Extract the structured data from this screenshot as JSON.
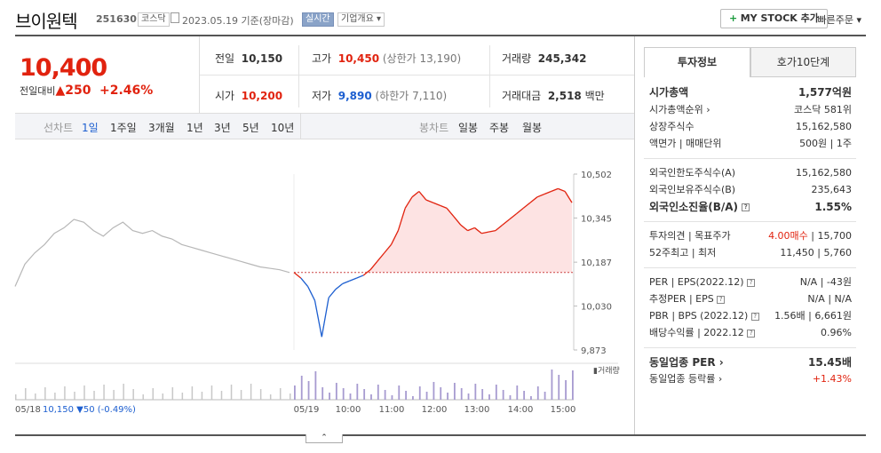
{
  "header": {
    "name": "브이원텍",
    "code": "251630",
    "market": "코스닥",
    "date": "2023.05.19",
    "basis": "기준(장마감)",
    "live": "실시간",
    "company_info": "기업개요",
    "mystock": "MY STOCK 추가",
    "quick_order": "빠른주문"
  },
  "price": {
    "current": "10,400",
    "prev_label": "전일대비",
    "change": "250",
    "change_pct": "+2.46%"
  },
  "stats": {
    "prev_close_label": "전일",
    "prev_close": "10,150",
    "high_label": "고가",
    "high": "10,450",
    "upper_limit": "(상한가 13,190)",
    "volume_label": "거래량",
    "volume": "245,342",
    "open_label": "시가",
    "open": "10,200",
    "low_label": "저가",
    "low": "9,890",
    "lower_limit": "(하한가 7,110)",
    "amount_label": "거래대금",
    "amount": "2,518",
    "amount_unit": "백만"
  },
  "chart_tabs": {
    "line_label": "선차트",
    "line_items": [
      "1일",
      "1주일",
      "3개월",
      "1년",
      "3년",
      "5년",
      "10년"
    ],
    "candle_label": "봉차트",
    "candle_items": [
      "일봉",
      "주봉",
      "월봉"
    ]
  },
  "chart_data": {
    "type": "line",
    "y_ticks": [
      "10,502",
      "10,345",
      "10,187",
      "10,030",
      "9,873"
    ],
    "ylim": [
      9873,
      10502
    ],
    "x_ticks": [
      "05/19",
      "10:00",
      "11:00",
      "12:00",
      "13:00",
      "14:00",
      "15:00"
    ],
    "prev_day_label": "05/18",
    "prev_day_info": "10,150",
    "prev_day_change": "50",
    "prev_day_pct": "(-0.49%)",
    "baseline": 10150,
    "volume_label": "거래량",
    "prev_day_series": [
      10100,
      10180,
      10220,
      10250,
      10290,
      10310,
      10340,
      10330,
      10300,
      10280,
      10310,
      10330,
      10300,
      10290,
      10300,
      10280,
      10270,
      10250,
      10240,
      10230,
      10220,
      10210,
      10200,
      10190,
      10180,
      10170,
      10165,
      10160,
      10150
    ],
    "today_series": [
      10150,
      10130,
      10100,
      10050,
      9920,
      10060,
      10090,
      10110,
      10120,
      10130,
      10140,
      10160,
      10190,
      10220,
      10250,
      10300,
      10380,
      10420,
      10440,
      10410,
      10400,
      10390,
      10380,
      10350,
      10320,
      10300,
      10310,
      10290,
      10295,
      10300,
      10320,
      10340,
      10360,
      10380,
      10400,
      10420,
      10430,
      10440,
      10450,
      10440,
      10400
    ]
  },
  "right_panel": {
    "tab_invest": "투자정보",
    "tab_hoga": "호가10단계",
    "market_cap_label": "시가총액",
    "market_cap": "1,577억원",
    "market_cap_rank_label": "시가총액순위",
    "market_cap_rank": "코스닥 581위",
    "shares_label": "상장주식수",
    "shares": "15,162,580",
    "par_label": "액면가 | 매매단위",
    "par": "500원 | 1주",
    "foreign_limit_label": "외국인한도주식수(A)",
    "foreign_limit": "15,162,580",
    "foreign_hold_label": "외국인보유주식수(B)",
    "foreign_hold": "235,643",
    "foreign_ratio_label": "외국인소진율(B/A)",
    "foreign_ratio": "1.55%",
    "opinion_label": "투자의견 | 목표주가",
    "opinion": "4.00매수",
    "target": "15,700",
    "week52_label": "52주최고 | 최저",
    "week52": "11,450 | 5,760",
    "per_label": "PER | EPS(2022.12)",
    "per": "N/A | -43원",
    "est_per_label": "추정PER | EPS",
    "est_per": "N/A | N/A",
    "pbr_label": "PBR | BPS (2022.12)",
    "pbr": "1.56배 | 6,661원",
    "div_label": "배당수익률 | 2022.12",
    "div": "0.96%",
    "sector_per_label": "동일업종 PER",
    "sector_per": "15.45배",
    "sector_rate_label": "동일업종 등락률",
    "sector_rate": "+1.43%"
  },
  "colors": {
    "up": "#e1230f",
    "down": "#1d5fd0"
  }
}
